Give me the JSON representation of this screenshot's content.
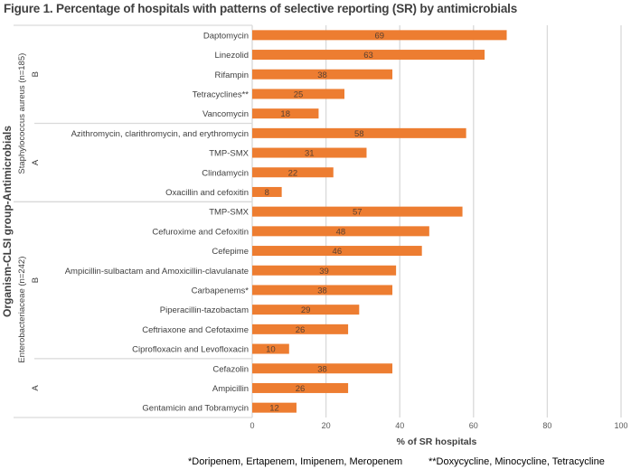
{
  "chart_data": {
    "type": "bar",
    "orientation": "horizontal",
    "title": "Figure 1. Percentage of hospitals with patterns of selective reporting (SR) by antimicrobials",
    "xlabel": "% of SR hospitals",
    "ylabel": "Organism-CLSI group-Antimicrobials",
    "xlim": [
      0,
      100
    ],
    "xticks": [
      "0",
      "20",
      "40",
      "60",
      "80",
      "100"
    ],
    "grid": true,
    "bar_color": "#ED7D31",
    "groups": [
      {
        "organism": "Staphylococcus aureus (n=185)",
        "subgroups": [
          {
            "name": "B",
            "items": [
              {
                "label": "Daptomycin",
                "value": 69
              },
              {
                "label": "Linezolid",
                "value": 63
              },
              {
                "label": "Rifampin",
                "value": 38
              },
              {
                "label": "Tetracyclines**",
                "value": 25
              },
              {
                "label": "Vancomycin",
                "value": 18
              }
            ]
          },
          {
            "name": "A",
            "items": [
              {
                "label": "Azithromycin, clarithromycin, and erythromycin",
                "value": 58
              },
              {
                "label": "TMP-SMX",
                "value": 31
              },
              {
                "label": "Clindamycin",
                "value": 22
              },
              {
                "label": "Oxacillin and cefoxitin",
                "value": 8
              }
            ]
          }
        ]
      },
      {
        "organism": "Enterobacteriaceae (n=242)",
        "subgroups": [
          {
            "name": "B",
            "items": [
              {
                "label": "TMP-SMX",
                "value": 57
              },
              {
                "label": "Cefuroxime and Cefoxitin",
                "value": 48
              },
              {
                "label": "Cefepime",
                "value": 46
              },
              {
                "label": "Ampicillin-sulbactam and Amoxicillin-clavulanate",
                "value": 39
              },
              {
                "label": "Carbapenems*",
                "value": 38
              },
              {
                "label": "Piperacillin-tazobactam",
                "value": 29
              },
              {
                "label": "Ceftriaxone and Cefotaxime",
                "value": 26
              },
              {
                "label": "Ciprofloxacin and Levofloxacin",
                "value": 10
              }
            ]
          },
          {
            "name": "A",
            "items": [
              {
                "label": "Cefazolin",
                "value": 38
              },
              {
                "label": "Ampicillin",
                "value": 26
              },
              {
                "label": "Gentamicin and Tobramycin",
                "value": 12
              }
            ]
          }
        ]
      }
    ],
    "footnotes": [
      "*Doripenem, Ertapenem, Imipenem, Meropenem",
      "**Doxycycline, Minocycline, Tetracycline"
    ]
  }
}
